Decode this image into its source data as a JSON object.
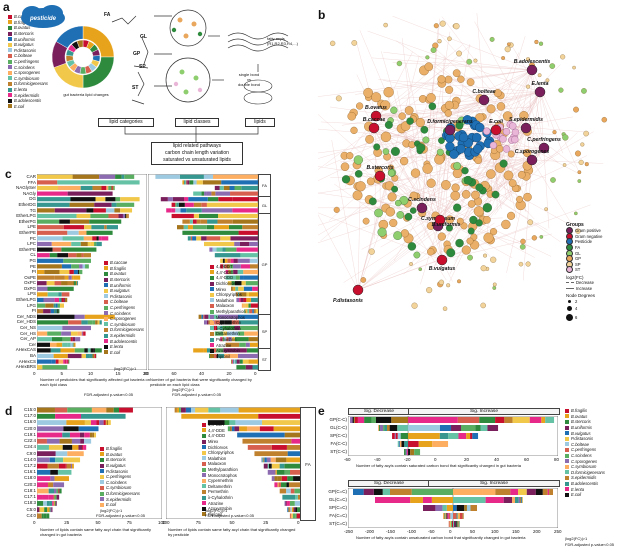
{
  "panel_letters": [
    "a",
    "b",
    "c",
    "d",
    "e"
  ],
  "panel_a": {
    "pesticide_label": "pesticide",
    "legend_label": "gut bacteria lipid changes",
    "categories": [
      "FA",
      "GL",
      "GP",
      "SP",
      "ST"
    ],
    "flow_boxes": [
      "lipid categories",
      "lipid classes",
      "lipids"
    ],
    "conclusion": [
      "lipid related pathways",
      "carbon chain length variation",
      "saturated vs unsaturated lipids"
    ],
    "fatty_acyls_label": [
      "fatty acyls",
      "(R1,R2,R3,R4,...)"
    ],
    "bond_label": [
      "single bond",
      "vs",
      "double bond"
    ],
    "bacteria": [
      "B.caccae",
      "B.fragilis",
      "B.ovatus",
      "B.stercoris",
      "B.uniformis",
      "B.vulgatus",
      "P.distasonis",
      "C.bolteae",
      "C.perfringens",
      "C.scindens",
      "C.sporogenes",
      "C.symbiosum",
      "D.formicigenerans",
      "E.lenta",
      "S.epidermidis",
      "B.adolescentis",
      "E.coli"
    ]
  },
  "panel_b": {
    "node_labels": [
      "B.adolescentis",
      "C.bolteae",
      "E.lenta",
      "B.ovatus",
      "B.caccae",
      "D.formicigenerans",
      "E.coli",
      "S.epidermidis",
      "C.perfringens",
      "C.sporogenes",
      "B.stercoris",
      "C.scindens",
      "C.symbiosum",
      "B.uniformis",
      "B.vulgatus",
      "P.distasonis"
    ],
    "legend_title": "Groups",
    "groups": [
      {
        "name": "Gram positive",
        "color": "#7a1f5c"
      },
      {
        "name": "Gram negative",
        "color": "#c8102e"
      },
      {
        "name": "Pesticide",
        "color": "#1f6fb4"
      },
      {
        "name": "FA",
        "color": "#2e8b3e"
      },
      {
        "name": "GL",
        "color": "#8fce6f"
      },
      {
        "name": "GP",
        "color": "#e8a75c"
      },
      {
        "name": "SP",
        "color": "#f2d49b"
      },
      {
        "name": "ST",
        "color": "#e9b6d8"
      }
    ],
    "fc_title": "log2(FC)",
    "fc_items": [
      "Decrease",
      "Increase"
    ],
    "degree_title": "Node Degrees",
    "degree_items": [
      "2",
      "4",
      "6"
    ]
  },
  "panel_c": {
    "left_xlabel": "Number of pesticides that significantly affected gut bacteria on each lipid class",
    "left_note": "|log2(FC)|>1",
    "left_note2": "FDR-adjusted p-value<0.05",
    "right_xlabel": "Number of gut bacteria that were significantly changed by pesticide on each lipid class",
    "right_note": "|log2(FC)|>1",
    "right_note2": "FDR-adjusted p-value<0.05",
    "rows": [
      "CAR",
      "FFA",
      "NAGlySer",
      "NAGly",
      "DG",
      "EtherDG",
      "TG",
      "EtherLPG",
      "EtherPG",
      "LPE",
      "EtherPE",
      "PC",
      "LPC",
      "EtherPE",
      "CL",
      "PG",
      "PE",
      "PI",
      "OxPE",
      "OxPC",
      "OxPG",
      "LPS",
      "EtherLPG",
      "LPG",
      "PI",
      "Cer_NDS",
      "Cer_HDS",
      "Cer_NS",
      "Cer_HS",
      "Cer_AP",
      "Cer",
      "AHexCAS",
      "BA",
      "AHexCS",
      "AHexBRS"
    ],
    "bacteria_legend": [
      "B.caccae",
      "B.fragilis",
      "B.ovatus",
      "B.stercoris",
      "B.uniformis",
      "B.vulgatus",
      "P.distasonis",
      "C.bolteae",
      "C.perfringens",
      "C.scindens",
      "C.sporogenes",
      "C.symbiosum",
      "D.formicigenerans",
      "S.epidermidis",
      "B.adolescentis",
      "E.lenta",
      "E.coli"
    ],
    "pesticide_legend": [
      "4,4'-DDT",
      "4,4'-DDE",
      "4,4'-DDD",
      "Dichlorvos",
      "Mirex",
      "Chlorpyriphos",
      "Malathion",
      "Malaoxon",
      "Methylparathion",
      "Monocrotophos",
      "Cypermethrin",
      "λ-Cyhalothrin",
      "Deltamethrin",
      "Permethrin",
      "Atrazine",
      "Azoxystrobin",
      "Pipronil"
    ],
    "left_ticks": [
      "0",
      "5",
      "10",
      "15",
      "20"
    ],
    "right_ticks": [
      "80",
      "60",
      "40",
      "20",
      "0"
    ],
    "categories": [
      "FA",
      "GL",
      "GP",
      "SP",
      "ST"
    ]
  },
  "panel_d": {
    "rows": [
      "C15:0",
      "C17:0",
      "C16:0",
      "C20:0",
      "C19:1",
      "C22:4",
      "C24:4",
      "C9:0",
      "C14:0",
      "C17:2",
      "C16:1",
      "C18:0",
      "C20:3",
      "C18:1",
      "C17:1",
      "C18:3",
      "C5:0",
      "C4:0"
    ],
    "left_xlabel": "Number of lipids contain same fatty acyl chain that significantly changed in gut bacteria",
    "right_xlabel": "Number of lipids contain same fatty acyl chain that significantly changed by pesticide",
    "note": "|log2(FC)|>1",
    "note2": "FDR-adjusted p-value<0.05",
    "left_ticks": [
      "0",
      "25",
      "50",
      "75",
      "100"
    ],
    "right_ticks": [
      "100",
      "75",
      "50",
      "25",
      "0"
    ],
    "bacteria_legend": [
      "B.fragilis",
      "B.ovatus",
      "B.stercoris",
      "B.vulgatus",
      "P.distasonis",
      "C.perfringens",
      "C.scindens",
      "C.symbiosum",
      "D.formicigenerans",
      "S.epidermidis",
      "E.coli"
    ],
    "pesticide_legend": [
      "4,4'-DDT",
      "4,4'-DDE",
      "4,4'-DDD",
      "Mirex",
      "Dichlorvos",
      "Chlorpyriphos",
      "Malathion",
      "Malaoxon",
      "Methylparathion",
      "Monocrotophos",
      "Cypermethrin",
      "Deltamethrin",
      "Permethrin",
      "λ-Cyhalothrin",
      "Atrazine",
      "Azoxystrobin",
      "Pipronil"
    ],
    "fa_label": "FA"
  },
  "panel_e": {
    "top_header": [
      "Sig. Decrease",
      "Sig. Increase"
    ],
    "top_rows": [
      "GP(C-C)",
      "GL(C-C)",
      "SP(C-C)",
      "FA(C-C)",
      "ST(C-C)"
    ],
    "top_ticks": [
      "-60",
      "-40",
      "-20",
      "0",
      "20",
      "40",
      "60",
      "80"
    ],
    "top_xlabel": "Number of fatty acyls contain saturated carbon bond that significantly changed in gut bacteria",
    "bottom_header": [
      "Sig. Decrease",
      "Sig. Increase"
    ],
    "bottom_rows": [
      "GP(C=C)",
      "GL(C=C)",
      "SP(C=C)",
      "FA(C=C)",
      "ST(C=C)"
    ],
    "bottom_ticks": [
      "-250",
      "-200",
      "-150",
      "-100",
      "-50",
      "0",
      "50",
      "100",
      "150",
      "200",
      "250"
    ],
    "bottom_xlabel": "Number of fatty acyls contain unsaturated carbon bond that significantly changed in gut bacteria",
    "legend": [
      "B.fragilis",
      "B.ovatus",
      "B.stercoris",
      "B.uniformis",
      "B.vulgatus",
      "P.distasonis",
      "C.bolteae",
      "C.perfringens",
      "C.scindens",
      "C.sporogenes",
      "C.symbiosum",
      "D.formicigenerans",
      "S.epidermidis",
      "B.adolescentis",
      "E.lenta",
      "E.coli"
    ],
    "note": "|log2(FC)|>1",
    "note2": "FDR-adjusted p-value<0.05"
  },
  "colors": [
    "#c8102e",
    "#e8a31c",
    "#2e8b3e",
    "#7a1f5c",
    "#1f6fb4",
    "#f2c84b",
    "#9ecae1",
    "#d6604d",
    "#5aae61",
    "#8c6bb1",
    "#fdae61",
    "#66c2a5",
    "#bf812d",
    "#35978f",
    "#e7298a",
    "#111111",
    "#a6761d"
  ]
}
